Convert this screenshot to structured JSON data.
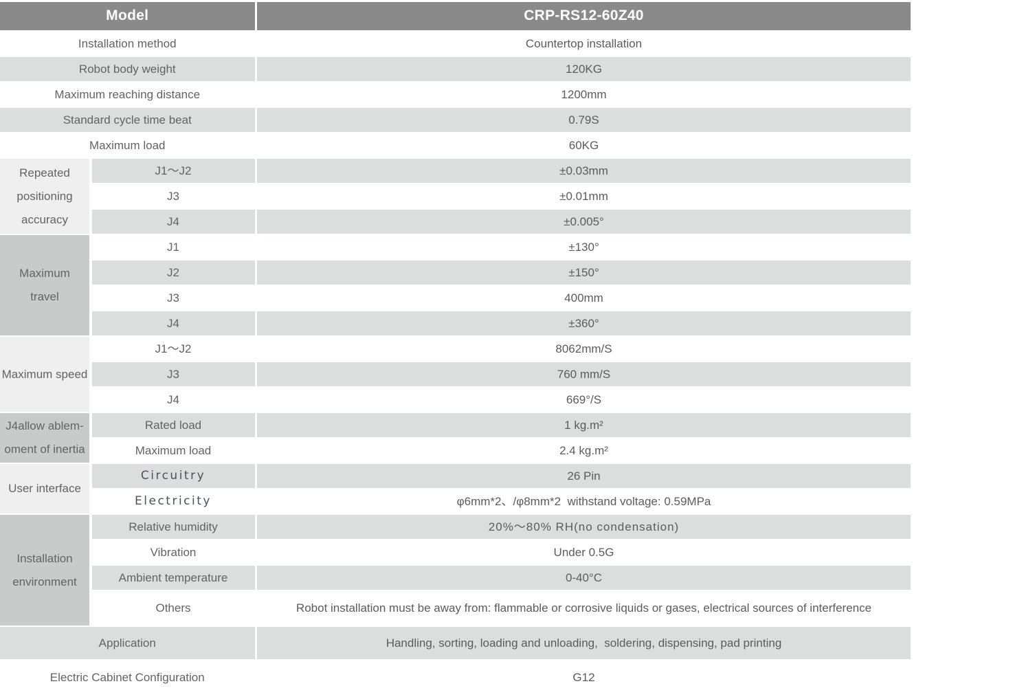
{
  "header": {
    "model_label": "Model",
    "model_value": "CRP-RS12-60Z40"
  },
  "rows": [
    {
      "label": "Installation method",
      "value": "Countertop installation"
    },
    {
      "label": "Robot body weight",
      "value": "120KG"
    },
    {
      "label": "Maximum reaching distance",
      "value": "1200mm"
    },
    {
      "label": "Standard cycle time beat",
      "value": "0.79S"
    },
    {
      "label": "Maximum load",
      "value": "60KG"
    },
    {
      "sub": "J1～J2",
      "value": "±0.03mm"
    },
    {
      "sub": "J3",
      "value": "±0.01mm"
    },
    {
      "sub": "J4",
      "value": "±0.005°"
    },
    {
      "sub": "J1",
      "value": "±130°"
    },
    {
      "sub": "J2",
      "value": "±150°"
    },
    {
      "sub": "J3",
      "value": "400mm"
    },
    {
      "sub": "J4",
      "value": "±360°"
    },
    {
      "sub": "J1～J2",
      "value": "8062mm/S"
    },
    {
      "sub": "J3",
      "value": "760 mm/S"
    },
    {
      "sub": "J4",
      "value": "669°/S"
    },
    {
      "sub": "Rated load",
      "value": "1 kg.m²"
    },
    {
      "sub": "Maximum load",
      "value": "2.4 kg.m²"
    },
    {
      "sub": "Circuitry",
      "value": "26 Pin"
    },
    {
      "sub": "Electricity",
      "value": "φ6mm*2、/φ8mm*2  withstand voltage: 0.59MPa"
    },
    {
      "sub": "Relative humidity",
      "value": "20%～80% RH(no condensation)"
    },
    {
      "sub": "Vibration",
      "value": "Under 0.5G"
    },
    {
      "sub": "Ambient temperature",
      "value": "0-40°C"
    },
    {
      "sub": "Others",
      "value": "Robot installation must be away from: flammable or corrosive liquids or gases, electrical sources of interference"
    },
    {
      "label": "Application",
      "value": "Handling, sorting, loading and unloading,  soldering, dispensing, pad printing"
    },
    {
      "label": "Electric Cabinet Configuration",
      "value": "G12"
    }
  ],
  "groups": [
    {
      "name": "repeated-positioning-accuracy",
      "lines": [
        "Repeated",
        "positioning",
        "accuracy"
      ]
    },
    {
      "name": "maximum-travel",
      "lines": [
        "Maximum",
        "travel"
      ]
    },
    {
      "name": "maximum-speed",
      "lines": [
        "Maximum speed"
      ]
    },
    {
      "name": "j4-allowable-moment-of-inertia",
      "lines": [
        "J4allow ablem-",
        "oment of inertia"
      ]
    },
    {
      "name": "user-interface",
      "lines": [
        "User interface"
      ]
    },
    {
      "name": "installation-environment",
      "lines": [
        "Installation",
        "environment"
      ]
    }
  ],
  "colors": {
    "header_bg": "#8a8a8a",
    "header_text": "#ffffff",
    "stripe_row_bg": "#dcdddd",
    "group_light_bg": "#efefef",
    "group_dark_bg": "#c9caca",
    "label_text": "#636363",
    "value_text": "#5d5b5b",
    "interface_label_text": "#47525c"
  }
}
